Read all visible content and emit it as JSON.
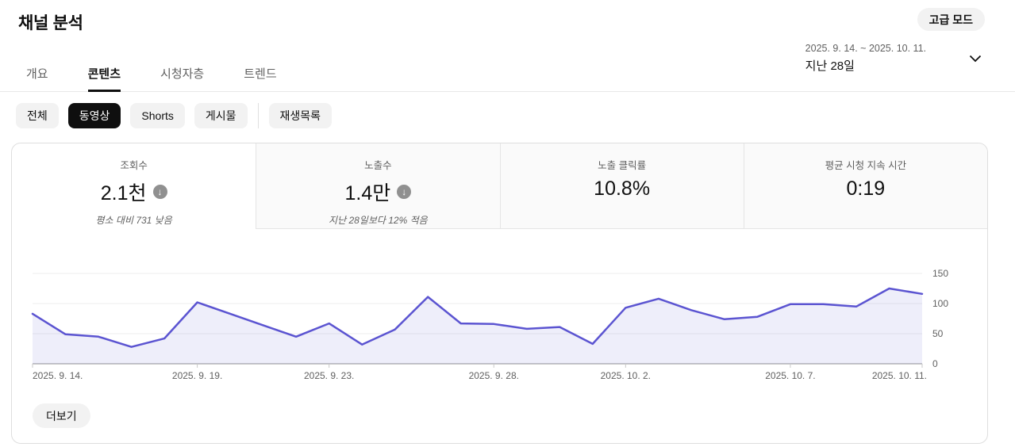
{
  "header": {
    "title": "채널 분석",
    "advanced_mode_label": "고급 모드"
  },
  "tabs": [
    {
      "id": "overview",
      "label": "개요",
      "active": false
    },
    {
      "id": "content",
      "label": "콘텐츠",
      "active": true
    },
    {
      "id": "audience",
      "label": "시청자층",
      "active": false
    },
    {
      "id": "trends",
      "label": "트렌드",
      "active": false
    }
  ],
  "date_selector": {
    "range": "2025. 9. 14. ~ 2025. 10. 11.",
    "preset": "지난 28일"
  },
  "content_filters": [
    {
      "id": "all",
      "label": "전체",
      "active": false
    },
    {
      "id": "videos",
      "label": "동영상",
      "active": true
    },
    {
      "id": "shorts",
      "label": "Shorts",
      "active": false
    },
    {
      "id": "posts",
      "label": "게시물",
      "active": false
    },
    {
      "id": "playlists",
      "label": "재생목록",
      "active": false,
      "divider_before": true
    }
  ],
  "metrics": [
    {
      "id": "views",
      "label": "조회수",
      "value": "2.1천",
      "trend": "down",
      "subtitle": "평소 대비 731 낮음",
      "selected": true
    },
    {
      "id": "impressions",
      "label": "노출수",
      "value": "1.4만",
      "trend": "down",
      "subtitle": "지난 28일보다 12% 적음",
      "selected": false
    },
    {
      "id": "impressions-ctr",
      "label": "노출 클릭률",
      "value": "10.8%",
      "trend": "",
      "subtitle": "",
      "selected": false
    },
    {
      "id": "avg-view-duration",
      "label": "평균 시청 지속 시간",
      "value": "0:19",
      "trend": "",
      "subtitle": "",
      "selected": false
    }
  ],
  "chart_data": {
    "type": "area",
    "series": [
      {
        "name": "조회수",
        "values": [
          83,
          49,
          45,
          28,
          42,
          102,
          83,
          64,
          45,
          67,
          32,
          57,
          111,
          67,
          66,
          58,
          61,
          33,
          93,
          108,
          89,
          74,
          78,
          99,
          99,
          95,
          125,
          116
        ]
      }
    ],
    "x_dates": [
      "2025. 9. 14.",
      "2025. 9. 15.",
      "2025. 9. 16.",
      "2025. 9. 17.",
      "2025. 9. 18.",
      "2025. 9. 19.",
      "2025. 9. 20.",
      "2025. 9. 21.",
      "2025. 9. 22.",
      "2025. 9. 23.",
      "2025. 9. 24.",
      "2025. 9. 25.",
      "2025. 9. 26.",
      "2025. 9. 27.",
      "2025. 9. 28.",
      "2025. 9. 29.",
      "2025. 9. 30.",
      "2025. 10. 1.",
      "2025. 10. 2.",
      "2025. 10. 3.",
      "2025. 10. 4.",
      "2025. 10. 5.",
      "2025. 10. 6.",
      "2025. 10. 7.",
      "2025. 10. 8.",
      "2025. 10. 9.",
      "2025. 10. 10.",
      "2025. 10. 11."
    ],
    "x_ticks": [
      {
        "index": 0,
        "label": "2025. 9. 14."
      },
      {
        "index": 5,
        "label": "2025. 9. 19."
      },
      {
        "index": 9,
        "label": "2025. 9. 23."
      },
      {
        "index": 14,
        "label": "2025. 9. 28."
      },
      {
        "index": 18,
        "label": "2025. 10. 2."
      },
      {
        "index": 23,
        "label": "2025. 10. 7."
      },
      {
        "index": 27,
        "label": "2025. 10. 11."
      }
    ],
    "yticks": [
      0,
      50,
      100,
      150
    ],
    "ylim": [
      0,
      150
    ],
    "grid": "horizontal",
    "legend": false,
    "colors": {
      "line": "#5b54d1",
      "fill": "rgba(91,84,209,0.10)",
      "axis": "#8f8f8f",
      "gridline": "#ececec",
      "tick_mark": "#c9c9c9",
      "tick_label": "#606060"
    }
  },
  "footer": {
    "more_label": "더보기"
  },
  "icons": {
    "trend_down": "↓",
    "chevron_down": "chevron-down-icon"
  }
}
